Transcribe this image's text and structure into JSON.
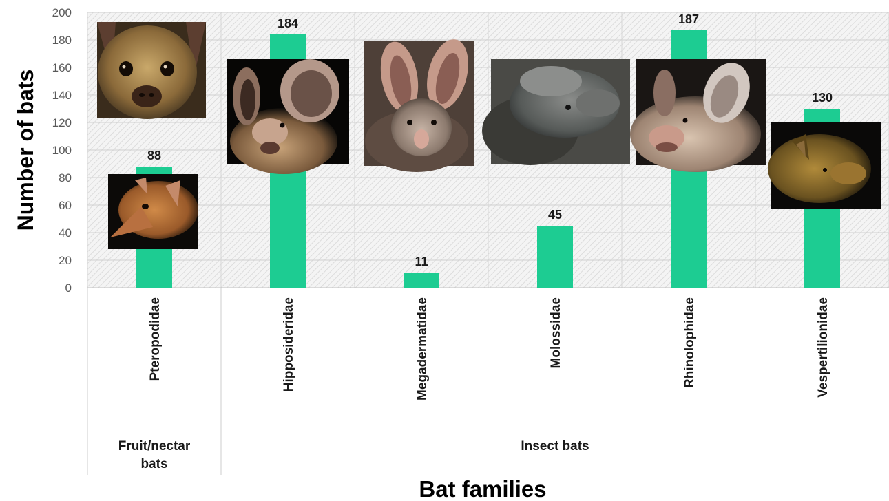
{
  "chart_data": {
    "type": "bar",
    "categories": [
      "Pteropodidae",
      "Hipposideridae",
      "Megadermatidae",
      "Molossidae",
      "Rhinolophidae",
      "Vespertilionidae"
    ],
    "values": [
      88,
      184,
      11,
      45,
      187,
      130
    ],
    "groups": [
      {
        "label": "Fruit/nectar bats",
        "categories": [
          "Pteropodidae"
        ]
      },
      {
        "label": "Insect bats",
        "categories": [
          "Hipposideridae",
          "Megadermatidae",
          "Molossidae",
          "Rhinolophidae",
          "Vespertilionidae"
        ]
      }
    ],
    "xlabel": "Bat families",
    "ylabel": "Number of bats",
    "ylim": [
      0,
      200
    ],
    "yticks": [
      0,
      20,
      40,
      60,
      80,
      100,
      120,
      140,
      160,
      180,
      200
    ],
    "data_labels": true,
    "grid": true,
    "bar_color": "#1DCC92",
    "images": [
      {
        "name": "fruit-bat-face-photo",
        "category": "Pteropodidae"
      },
      {
        "name": "fruit-bat-profile-photo",
        "category": "Pteropodidae"
      },
      {
        "name": "hipposiderid-bat-photo",
        "category": "Hipposideridae"
      },
      {
        "name": "megadermatid-bat-photo",
        "category": "Megadermatidae"
      },
      {
        "name": "molossid-bat-photo",
        "category": "Molossidae"
      },
      {
        "name": "rhinolophid-bat-photo",
        "category": "Rhinolophidae"
      },
      {
        "name": "vespertilionid-bat-photo",
        "category": "Vespertilionidae"
      }
    ]
  }
}
